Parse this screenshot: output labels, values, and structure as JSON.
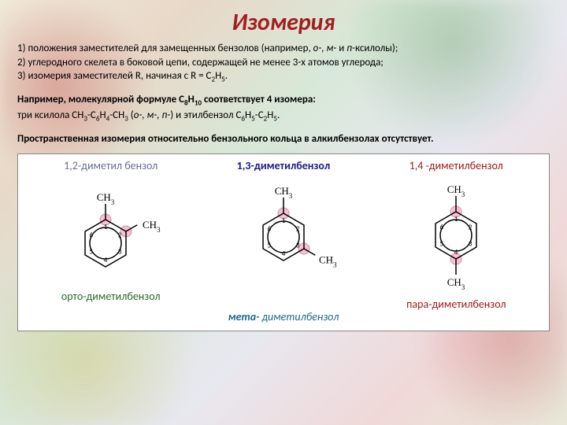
{
  "title": "Изомерия",
  "p1_l1_a": "1) положения заместителей для замещенных бензолов (например, ",
  "p1_l1_b": "о-, м- ",
  "p1_l1_c": "и ",
  "p1_l1_d": "п-",
  "p1_l1_e": "ксилолы);",
  "p1_l2": "2) углеродного скелета в боковой цепи, содержащей не менее 3-х атомов углерода;",
  "p1_l3_a": "3) изомерия заместителей R, начиная с R = С",
  "p1_l3_b": "2",
  "p1_l3_c": "Н",
  "p1_l3_d": "5",
  "p1_l3_e": ".",
  "p2_a": "Например, молекулярной формуле С",
  "p2_b": "8",
  "p2_c": "Н",
  "p2_d": "10",
  "p2_e": " соответствует 4 изомера:",
  "p2_l2_a": "три ксилола CH",
  "p2_l2_b": "3",
  "p2_l2_c": "-C",
  "p2_l2_d": "6",
  "p2_l2_e": "H",
  "p2_l2_f": "4",
  "p2_l2_g": "-CH",
  "p2_l2_h": "3",
  "p2_l2_i": " (",
  "p2_l2_j": "о-, м-, п-",
  "p2_l2_k": ") и этилбензол C",
  "p2_l2_l": "6",
  "p2_l2_m": "H",
  "p2_l2_n": "5",
  "p2_l2_o": "-С",
  "p2_l2_p": "2",
  "p2_l2_q": "Н",
  "p2_l2_r": "5",
  "p2_l2_s": ".",
  "p3": "Пространственная изомерия относительно бензольного кольца в алкилбензолах отсутствует.",
  "fig": {
    "title1": "1,2-диметил бензол",
    "title2": "1,3-диметилбензол",
    "title3": "1,4 -диметилбензол",
    "cap1": "орто-диметилбензол",
    "cap2_prefix": "мета-",
    "cap2_rest": "диметилбензол",
    "cap3": "пара-диметилбензол",
    "ch3": "CH",
    "sub3": "3",
    "ring_r": 30,
    "inner_r": 20,
    "highlight_fill": "#f4c2d4",
    "highlight_stroke": "#d090a8",
    "line_color": "#000000",
    "num_color": "#000000",
    "num_fontsize": 9,
    "label_fontsize": 13
  }
}
